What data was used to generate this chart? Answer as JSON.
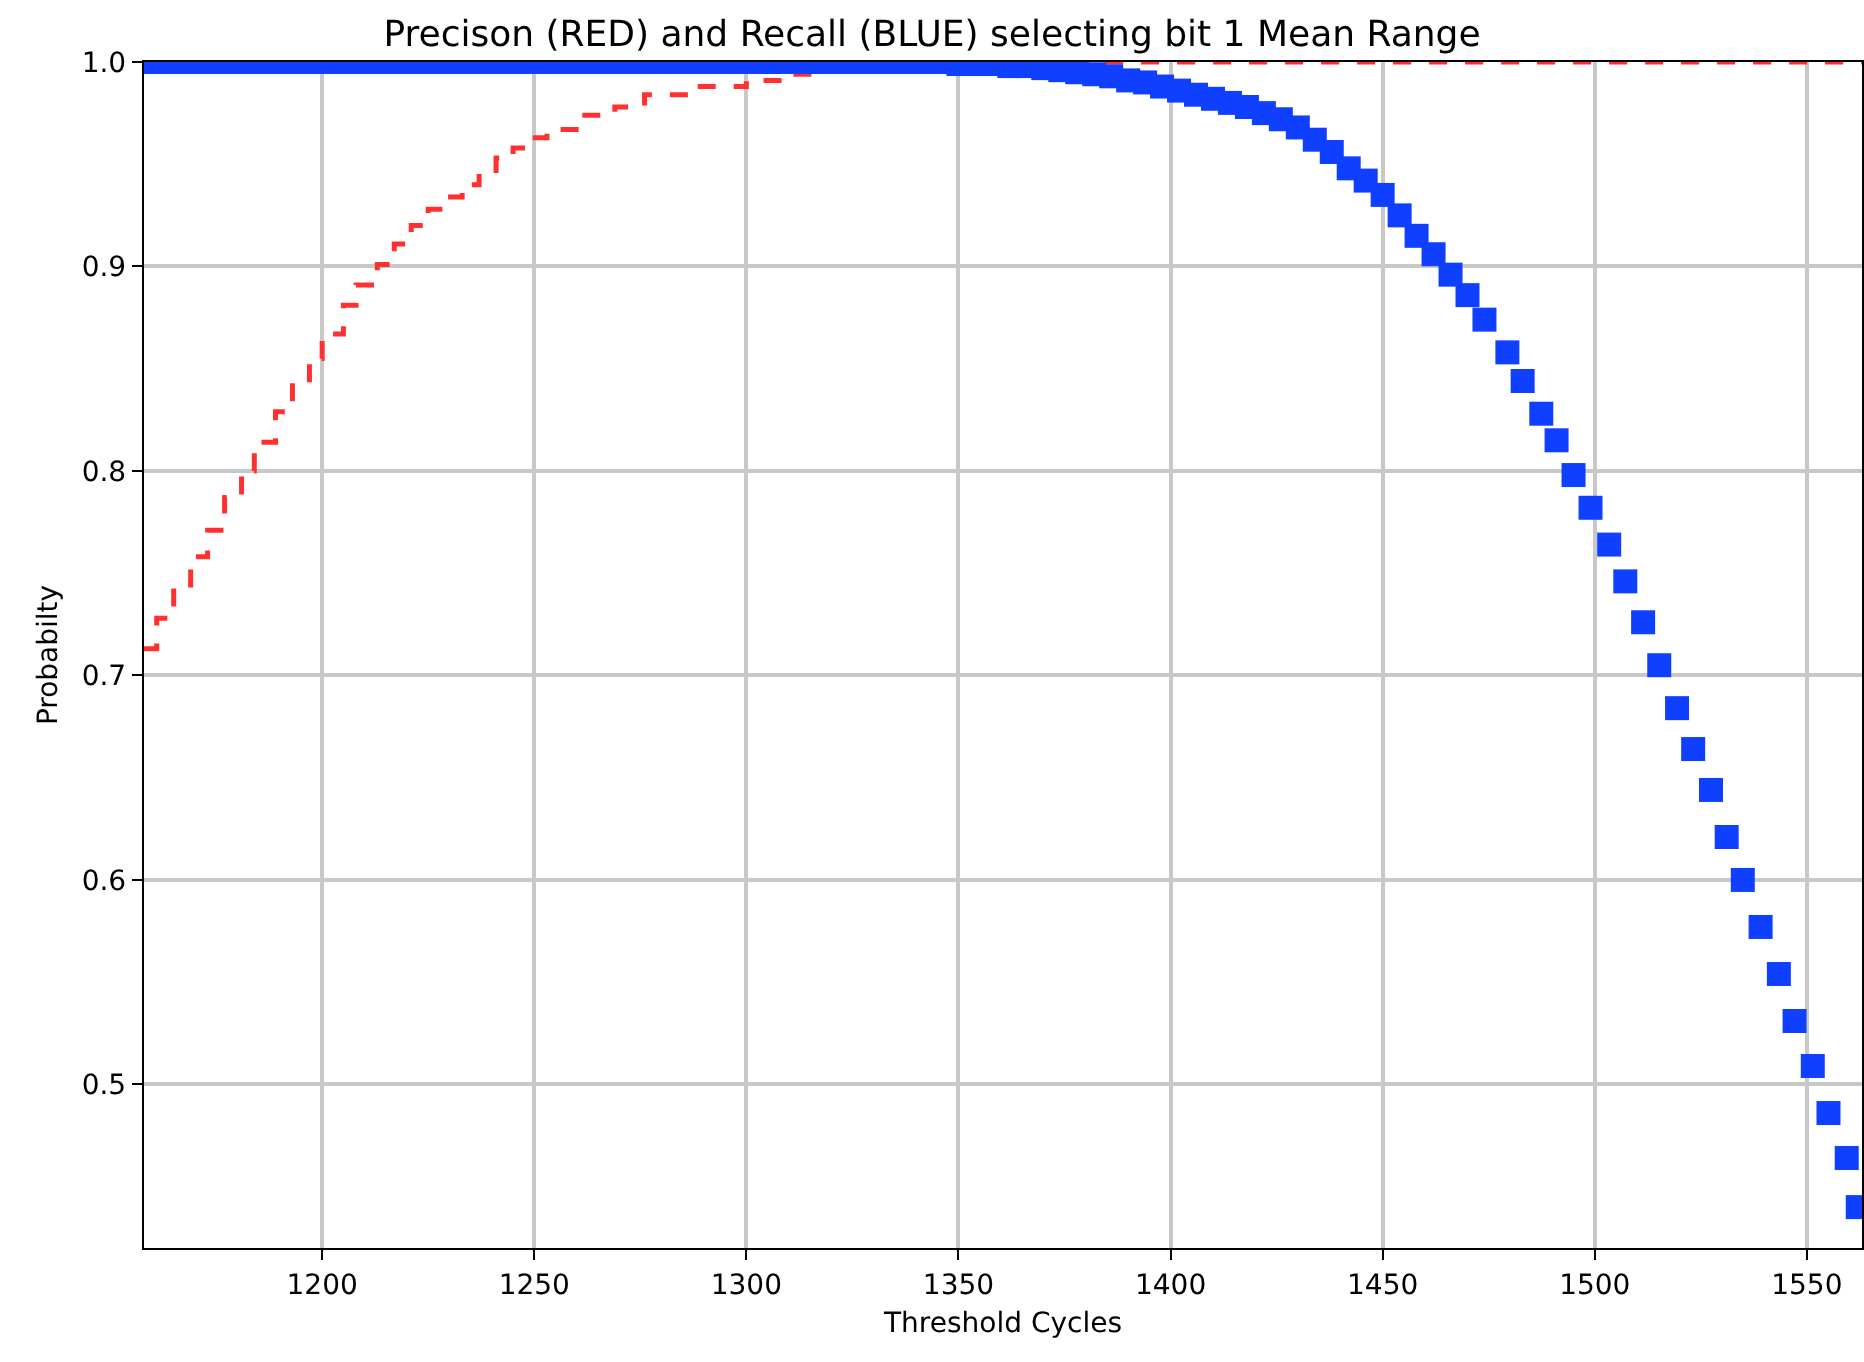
{
  "chart_data": {
    "type": "step",
    "title": "Precison (RED) and Recall (BLUE) selecting bit 1 Mean Range",
    "xlabel": "Threshold Cycles",
    "ylabel": "Probabilty",
    "xlim": [
      1158,
      1563
    ],
    "xticks": [
      1200,
      1250,
      1300,
      1350,
      1400,
      1450,
      1500,
      1550
    ],
    "ylim": [
      0.42,
      1.0
    ],
    "yticks": [
      {
        "value": 0.5,
        "label": "0.5"
      },
      {
        "value": 0.6,
        "label": "0.6"
      },
      {
        "value": 0.7,
        "label": "0.7"
      },
      {
        "value": 0.8,
        "label": "0.8"
      },
      {
        "value": 0.9,
        "label": "0.9"
      },
      {
        "value": 1.0,
        "label": "1.0"
      }
    ],
    "grid": true,
    "series": [
      {
        "color": "#ff3030",
        "line_style": "dashed",
        "marker": "none",
        "x": [
          1158,
          1161,
          1165,
          1169,
          1173,
          1177,
          1181,
          1184,
          1189,
          1193,
          1197,
          1200,
          1205,
          1208,
          1213,
          1217,
          1221,
          1225,
          1229,
          1233,
          1237,
          1241,
          1245,
          1249,
          1253,
          1261,
          1269,
          1276,
          1287,
          1300,
          1309,
          1317,
          1325,
          1335,
          1563
        ],
        "values": [
          0.713,
          0.728,
          0.743,
          0.758,
          0.771,
          0.787,
          0.8,
          0.814,
          0.829,
          0.843,
          0.855,
          0.867,
          0.881,
          0.891,
          0.901,
          0.911,
          0.92,
          0.928,
          0.934,
          0.94,
          0.947,
          0.953,
          0.958,
          0.963,
          0.967,
          0.974,
          0.978,
          0.984,
          0.988,
          0.991,
          0.994,
          0.996,
          0.998,
          1.0,
          1.0
        ]
      },
      {
        "type": "scatter",
        "color": "#1040ff",
        "marker": "square",
        "x": [
          1160,
          1165,
          1170,
          1175,
          1180,
          1185,
          1190,
          1195,
          1200,
          1205,
          1210,
          1215,
          1220,
          1225,
          1230,
          1235,
          1240,
          1245,
          1250,
          1255,
          1260,
          1265,
          1270,
          1275,
          1280,
          1285,
          1290,
          1295,
          1300,
          1305,
          1310,
          1315,
          1320,
          1325,
          1330,
          1335,
          1340,
          1345,
          1350,
          1354,
          1358,
          1362,
          1366,
          1370,
          1374,
          1378,
          1382,
          1386,
          1390,
          1394,
          1398,
          1402,
          1406,
          1410,
          1414,
          1418,
          1422,
          1426,
          1430,
          1434,
          1438,
          1442,
          1446,
          1450,
          1454,
          1458,
          1462,
          1466,
          1470,
          1474,
          1479.4,
          1483,
          1487.4,
          1491,
          1495,
          1499,
          1503.4,
          1507.2,
          1511.4,
          1515.2,
          1519.4,
          1523.2,
          1527.4,
          1531.1,
          1534.9,
          1539.1,
          1543.4,
          1547.1,
          1551.4,
          1555.1,
          1559.4,
          1562
        ],
        "values": [
          1.0,
          1.0,
          1.0,
          1.0,
          1.0,
          1.0,
          1.0,
          1.0,
          1.0,
          1.0,
          1.0,
          1.0,
          1.0,
          1.0,
          1.0,
          1.0,
          1.0,
          1.0,
          1.0,
          1.0,
          1.0,
          1.0,
          1.0,
          1.0,
          1.0,
          1.0,
          1.0,
          1.0,
          1.0,
          1.0,
          1.0,
          1.0,
          1.0,
          1.0,
          1.0,
          1.0,
          1.0,
          1.0,
          0.999,
          0.999,
          0.999,
          0.998,
          0.998,
          0.997,
          0.996,
          0.995,
          0.994,
          0.993,
          0.991,
          0.99,
          0.988,
          0.986,
          0.984,
          0.982,
          0.98,
          0.978,
          0.975,
          0.972,
          0.968,
          0.962,
          0.956,
          0.948,
          0.942,
          0.935,
          0.925,
          0.915,
          0.906,
          0.896,
          0.886,
          0.874,
          0.858,
          0.844,
          0.828,
          0.815,
          0.798,
          0.782,
          0.764,
          0.746,
          0.726,
          0.705,
          0.684,
          0.664,
          0.644,
          0.621,
          0.6,
          0.577,
          0.554,
          0.531,
          0.509,
          0.486,
          0.464,
          0.44
        ]
      }
    ]
  }
}
